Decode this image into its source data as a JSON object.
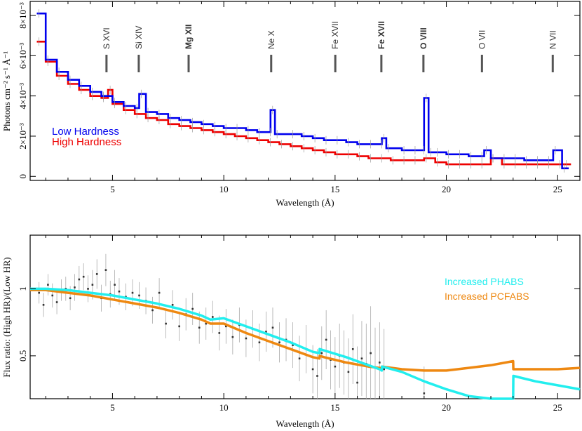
{
  "chart_data": [
    {
      "type": "line",
      "title": "",
      "xlabel": "Wavelength (Å)",
      "ylabel": "Photons cm⁻² s⁻¹ Å⁻¹",
      "xlim": [
        1.3,
        26.0
      ],
      "ylim": [
        -0.0002,
        0.0087
      ],
      "xticks": [
        5,
        10,
        15,
        20,
        25
      ],
      "yticks": [
        {
          "v": 0,
          "label": "0"
        },
        {
          "v": 0.002,
          "label": "2×10⁻³"
        },
        {
          "v": 0.004,
          "label": "4×10⁻³"
        },
        {
          "v": 0.006,
          "label": "6×10⁻³"
        },
        {
          "v": 0.008,
          "label": "8×10⁻³"
        }
      ],
      "lines": [
        {
          "label": "S XVI",
          "x": 4.73,
          "bold": false
        },
        {
          "label": "Si XIV",
          "x": 6.18,
          "bold": false
        },
        {
          "label": "Mg XII",
          "x": 8.42,
          "bold": true
        },
        {
          "label": "Ne X",
          "x": 12.13,
          "bold": false
        },
        {
          "label": "Fe XVII",
          "x": 15.01,
          "bold": false
        },
        {
          "label": "Fe XVII",
          "x": 17.08,
          "bold": true
        },
        {
          "label": "O VIII",
          "x": 18.97,
          "bold": true
        },
        {
          "label": "O VII",
          "x": 21.6,
          "bold": false
        },
        {
          "label": "N VII",
          "x": 24.78,
          "bold": false
        }
      ],
      "series": [
        {
          "name": "Low Hardness",
          "color": "#0000ee",
          "x": [
            1.6,
            2.0,
            2.5,
            3.0,
            3.5,
            4.0,
            4.5,
            5.0,
            5.5,
            6.0,
            6.2,
            6.5,
            7.0,
            7.5,
            8.0,
            8.5,
            9.0,
            9.5,
            10.0,
            10.5,
            11.0,
            11.5,
            12.0,
            12.1,
            12.3,
            13.0,
            13.5,
            14.0,
            14.5,
            15.0,
            15.5,
            16.0,
            16.5,
            17.0,
            17.1,
            17.3,
            18.0,
            18.5,
            18.9,
            19.0,
            19.2,
            19.5,
            20.0,
            20.5,
            21.0,
            21.5,
            21.7,
            22.0,
            22.5,
            23.0,
            23.5,
            24.0,
            24.5,
            24.8,
            25.2
          ],
          "y": [
            0.0081,
            0.0058,
            0.0052,
            0.0048,
            0.0045,
            0.0042,
            0.004,
            0.0037,
            0.0035,
            0.0034,
            0.0041,
            0.0032,
            0.0031,
            0.0029,
            0.0028,
            0.0027,
            0.0026,
            0.0025,
            0.0024,
            0.0024,
            0.0023,
            0.0022,
            0.0022,
            0.0033,
            0.0021,
            0.0021,
            0.002,
            0.0019,
            0.0018,
            0.0018,
            0.0017,
            0.0016,
            0.0016,
            0.0016,
            0.0019,
            0.0014,
            0.0013,
            0.0013,
            0.0013,
            0.0039,
            0.0012,
            0.0012,
            0.0011,
            0.0011,
            0.001,
            0.001,
            0.0013,
            0.0009,
            0.0009,
            0.0009,
            0.0008,
            0.0008,
            0.0008,
            0.0013,
            0.0004
          ]
        },
        {
          "name": "High Hardness",
          "color": "#ee0000",
          "x": [
            1.6,
            2.0,
            2.5,
            3.0,
            3.5,
            4.0,
            4.5,
            4.8,
            5.0,
            5.5,
            6.0,
            6.5,
            7.0,
            7.5,
            8.0,
            8.5,
            9.0,
            9.5,
            10.0,
            10.5,
            11.0,
            11.5,
            12.0,
            12.5,
            13.0,
            13.5,
            14.0,
            14.5,
            15.0,
            15.5,
            16.0,
            16.5,
            17.0,
            17.5,
            18.0,
            18.5,
            19.0,
            19.5,
            20.0,
            20.5,
            21.0,
            21.5,
            22.0,
            22.5,
            23.0,
            23.5,
            24.0,
            24.5,
            25.0,
            25.3
          ],
          "y": [
            0.0067,
            0.0057,
            0.005,
            0.0046,
            0.0043,
            0.004,
            0.0039,
            0.0043,
            0.0036,
            0.0033,
            0.0031,
            0.0029,
            0.0028,
            0.0026,
            0.0025,
            0.0024,
            0.0023,
            0.0022,
            0.0021,
            0.002,
            0.0019,
            0.0018,
            0.0017,
            0.0016,
            0.0015,
            0.0014,
            0.0013,
            0.0012,
            0.0011,
            0.0011,
            0.001,
            0.0009,
            0.0009,
            0.0008,
            0.0008,
            0.0008,
            0.0009,
            0.0007,
            0.0006,
            0.0006,
            0.0006,
            0.0006,
            0.0009,
            0.0006,
            0.0006,
            0.0006,
            0.0006,
            0.0006,
            0.0006,
            0.0006
          ]
        }
      ]
    },
    {
      "type": "line",
      "title": "",
      "xlabel": "Wavelength (Å)",
      "ylabel": "Flux ratio: (High HR)/(Low HR)",
      "xlim": [
        1.3,
        26.0
      ],
      "ylim": [
        0.18,
        1.4
      ],
      "xticks": [
        5,
        10,
        15,
        20,
        25
      ],
      "yticks": [
        {
          "v": 0.5,
          "label": "0.5"
        },
        {
          "v": 1.0,
          "label": "1"
        }
      ],
      "series": [
        {
          "name": "Increased PHABS",
          "color": "#22eeee",
          "x": [
            1.3,
            2.0,
            3.0,
            4.0,
            5.0,
            6.0,
            7.0,
            8.0,
            9.0,
            9.4,
            10.0,
            11.0,
            12.0,
            13.0,
            14.0,
            14.3,
            14.31,
            14.5,
            15.5,
            16.5,
            17.0,
            17.1,
            17.11,
            18.0,
            19.0,
            20.0,
            21.0,
            22.0,
            23.0,
            23.01,
            24.0,
            25.0,
            26.0
          ],
          "y": [
            1.0,
            1.0,
            0.99,
            0.97,
            0.95,
            0.92,
            0.89,
            0.85,
            0.8,
            0.77,
            0.78,
            0.72,
            0.66,
            0.6,
            0.53,
            0.52,
            0.55,
            0.54,
            0.49,
            0.43,
            0.4,
            0.39,
            0.42,
            0.38,
            0.31,
            0.25,
            0.2,
            0.15,
            0.11,
            0.35,
            0.31,
            0.28,
            0.25
          ]
        },
        {
          "name": "Increased PCFABS",
          "color": "#ee8811",
          "x": [
            1.3,
            2.0,
            3.0,
            4.0,
            5.0,
            6.0,
            7.0,
            8.0,
            9.0,
            9.4,
            10.0,
            11.0,
            12.0,
            13.0,
            14.0,
            14.3,
            14.31,
            14.5,
            15.5,
            16.5,
            17.0,
            17.1,
            17.11,
            18.0,
            19.0,
            20.0,
            21.0,
            22.0,
            23.0,
            23.01,
            24.0,
            25.0,
            26.0
          ],
          "y": [
            0.99,
            0.99,
            0.97,
            0.95,
            0.92,
            0.89,
            0.86,
            0.82,
            0.77,
            0.74,
            0.74,
            0.67,
            0.61,
            0.55,
            0.49,
            0.48,
            0.5,
            0.49,
            0.45,
            0.42,
            0.41,
            0.41,
            0.42,
            0.4,
            0.39,
            0.39,
            0.41,
            0.43,
            0.46,
            0.4,
            0.4,
            0.4,
            0.41
          ]
        }
      ],
      "points": {
        "x": [
          1.7,
          1.9,
          2.1,
          2.3,
          2.5,
          2.7,
          2.9,
          3.1,
          3.3,
          3.5,
          3.7,
          3.9,
          4.1,
          4.3,
          4.5,
          4.7,
          4.9,
          5.1,
          5.3,
          5.6,
          5.9,
          6.2,
          6.5,
          6.8,
          7.1,
          7.4,
          7.7,
          8.0,
          8.3,
          8.6,
          8.9,
          9.2,
          9.5,
          9.8,
          10.1,
          10.4,
          10.7,
          11.0,
          11.3,
          11.6,
          11.9,
          12.2,
          12.5,
          12.8,
          13.1,
          13.4,
          13.7,
          14.0,
          14.2,
          14.4,
          14.6,
          14.8,
          15.0,
          15.2,
          15.4,
          15.6,
          15.8,
          16.0,
          16.2,
          16.4,
          16.6,
          16.8,
          17.0,
          17.2,
          19.0
        ],
        "y": [
          0.97,
          0.88,
          1.03,
          0.95,
          0.9,
          0.99,
          1.0,
          0.93,
          1.01,
          1.07,
          1.09,
          1.0,
          1.03,
          1.11,
          0.93,
          1.14,
          0.96,
          1.03,
          0.98,
          0.94,
          0.97,
          0.95,
          0.91,
          0.84,
          0.97,
          0.74,
          0.88,
          0.72,
          0.81,
          0.85,
          0.71,
          0.74,
          0.79,
          0.67,
          0.72,
          0.64,
          0.73,
          0.63,
          0.7,
          0.6,
          0.68,
          0.71,
          0.6,
          0.62,
          0.58,
          0.48,
          0.55,
          0.4,
          0.35,
          0.52,
          0.62,
          0.47,
          0.42,
          0.5,
          0.45,
          0.38,
          0.55,
          0.3,
          0.48,
          0.44,
          0.52,
          0.41,
          0.45,
          0.4,
          0.22
        ],
        "err": [
          0.08,
          0.09,
          0.08,
          0.09,
          0.09,
          0.08,
          0.09,
          0.09,
          0.1,
          0.1,
          0.1,
          0.1,
          0.11,
          0.11,
          0.1,
          0.12,
          0.1,
          0.11,
          0.1,
          0.1,
          0.1,
          0.1,
          0.1,
          0.1,
          0.11,
          0.11,
          0.11,
          0.11,
          0.12,
          0.12,
          0.12,
          0.12,
          0.12,
          0.13,
          0.13,
          0.13,
          0.13,
          0.14,
          0.14,
          0.14,
          0.15,
          0.15,
          0.15,
          0.16,
          0.17,
          0.17,
          0.18,
          0.18,
          0.2,
          0.2,
          0.22,
          0.22,
          0.22,
          0.24,
          0.24,
          0.25,
          0.26,
          0.27,
          0.28,
          0.3,
          0.35,
          0.3,
          0.3,
          0.3,
          0.2
        ]
      }
    }
  ],
  "legend": {
    "top_low": "Low Hardness",
    "top_high": "High Hardness",
    "bottom_phabs": "Increased PHABS",
    "bottom_pcfabs": "Increased PCFABS"
  },
  "colors": {
    "low": "#0000ee",
    "high": "#ee0000",
    "phabs": "#22eeee",
    "pcfabs": "#ee8811",
    "points": "#555555"
  }
}
